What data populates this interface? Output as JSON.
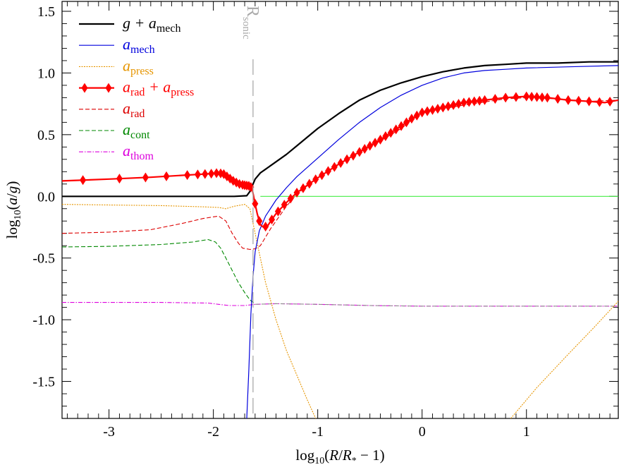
{
  "chart_data": {
    "type": "line",
    "xlabel": "log10(R/R* − 1)",
    "ylabel": "log10(a/g)",
    "xlim": [
      -3.45,
      1.88
    ],
    "ylim": [
      -1.8,
      1.58
    ],
    "x_ticks": [
      -3,
      -2,
      -1,
      0,
      1
    ],
    "x_tick_labels": [
      "-3",
      "-2",
      "-1",
      "0",
      "1"
    ],
    "y_ticks": [
      -1.5,
      -1.0,
      -0.5,
      0.0,
      0.5,
      1.0,
      1.5
    ],
    "y_tick_labels": [
      "-1.5",
      "-1.0",
      "-0.5",
      "0.0",
      "0.5",
      "1.0",
      "1.5"
    ],
    "annotation": {
      "text": "R",
      "sub": "sonic",
      "x": -1.62,
      "color": "#aaaaaa"
    },
    "series": [
      {
        "name": "g + a_mech",
        "label": "g + a",
        "sub": "mech",
        "color": "#000000",
        "style": "solid",
        "width": 2.2,
        "points": [
          [
            -3.45,
            0.0
          ],
          [
            -2.5,
            0.0
          ],
          [
            -1.8,
            0.0
          ],
          [
            -1.68,
            0.005
          ],
          [
            -1.65,
            0.04
          ],
          [
            -1.62,
            0.1
          ],
          [
            -1.6,
            0.14
          ],
          [
            -1.55,
            0.19
          ],
          [
            -1.5,
            0.22
          ],
          [
            -1.4,
            0.28
          ],
          [
            -1.3,
            0.34
          ],
          [
            -1.2,
            0.41
          ],
          [
            -1.0,
            0.55
          ],
          [
            -0.8,
            0.67
          ],
          [
            -0.6,
            0.78
          ],
          [
            -0.4,
            0.86
          ],
          [
            -0.2,
            0.92
          ],
          [
            0.0,
            0.97
          ],
          [
            0.2,
            1.01
          ],
          [
            0.4,
            1.04
          ],
          [
            0.6,
            1.06
          ],
          [
            0.8,
            1.07
          ],
          [
            1.0,
            1.08
          ],
          [
            1.3,
            1.08
          ],
          [
            1.6,
            1.09
          ],
          [
            1.88,
            1.09
          ]
        ]
      },
      {
        "name": "a_mech",
        "label": "a",
        "sub": "mech",
        "color": "#0000dd",
        "style": "solid",
        "width": 1.2,
        "points": [
          [
            -1.68,
            -1.8
          ],
          [
            -1.66,
            -1.4
          ],
          [
            -1.64,
            -0.95
          ],
          [
            -1.62,
            -0.65
          ],
          [
            -1.6,
            -0.45
          ],
          [
            -1.56,
            -0.28
          ],
          [
            -1.5,
            -0.16
          ],
          [
            -1.4,
            -0.03
          ],
          [
            -1.3,
            0.07
          ],
          [
            -1.2,
            0.16
          ],
          [
            -1.0,
            0.31
          ],
          [
            -0.8,
            0.46
          ],
          [
            -0.6,
            0.6
          ],
          [
            -0.4,
            0.72
          ],
          [
            -0.2,
            0.82
          ],
          [
            0.0,
            0.9
          ],
          [
            0.2,
            0.96
          ],
          [
            0.4,
            1.0
          ],
          [
            0.6,
            1.02
          ],
          [
            0.8,
            1.03
          ],
          [
            1.0,
            1.04
          ],
          [
            1.4,
            1.05
          ],
          [
            1.88,
            1.06
          ]
        ]
      },
      {
        "name": "a_press",
        "label": "a",
        "sub": "press",
        "color": "#e69500",
        "style": "dotted",
        "width": 1.1,
        "points": [
          [
            -3.45,
            -0.065
          ],
          [
            -3.0,
            -0.07
          ],
          [
            -2.5,
            -0.075
          ],
          [
            -2.1,
            -0.085
          ],
          [
            -1.95,
            -0.09
          ],
          [
            -1.88,
            -0.1
          ],
          [
            -1.84,
            -0.09
          ],
          [
            -1.8,
            -0.08
          ],
          [
            -1.7,
            -0.065
          ],
          [
            -1.65,
            -0.1
          ],
          [
            -1.6,
            -0.3
          ],
          [
            -1.55,
            -0.5
          ],
          [
            -1.5,
            -0.7
          ],
          [
            -1.4,
            -1.0
          ],
          [
            -1.3,
            -1.25
          ],
          [
            -1.2,
            -1.45
          ],
          [
            -1.1,
            -1.65
          ],
          [
            -1.02,
            -1.8
          ]
        ]
      },
      {
        "name": "a_press_outer",
        "label": "",
        "sub": "",
        "color": "#e69500",
        "style": "dotted",
        "width": 1.1,
        "legend": false,
        "points": [
          [
            0.85,
            -1.8
          ],
          [
            1.1,
            -1.55
          ],
          [
            1.4,
            -1.28
          ],
          [
            1.65,
            -1.06
          ],
          [
            1.88,
            -0.85
          ]
        ]
      },
      {
        "name": "a_thom",
        "label": "a",
        "sub": "thom",
        "color": "#dd00dd",
        "style": "dashdot",
        "width": 1.1,
        "points": [
          [
            -3.45,
            -0.86
          ],
          [
            -2.5,
            -0.86
          ],
          [
            -2.05,
            -0.865
          ],
          [
            -1.95,
            -0.875
          ],
          [
            -1.85,
            -0.885
          ],
          [
            -1.7,
            -0.885
          ],
          [
            -1.6,
            -0.875
          ],
          [
            -1.4,
            -0.87
          ],
          [
            -1.0,
            -0.875
          ],
          [
            -0.5,
            -0.885
          ],
          [
            0.0,
            -0.89
          ],
          [
            0.5,
            -0.89
          ],
          [
            1.0,
            -0.89
          ],
          [
            1.88,
            -0.89
          ]
        ]
      },
      {
        "name": "a_thom_overlay",
        "label": "",
        "sub": "",
        "color": "#888888",
        "style": "dashed",
        "width": 1.0,
        "legend": false,
        "points": [
          [
            -1.6,
            -0.875
          ],
          [
            -1.4,
            -0.87
          ],
          [
            -1.0,
            -0.875
          ],
          [
            -0.5,
            -0.885
          ],
          [
            0.0,
            -0.89
          ],
          [
            0.5,
            -0.89
          ],
          [
            1.0,
            -0.89
          ],
          [
            1.88,
            -0.89
          ]
        ]
      },
      {
        "name": "a_cont",
        "label": "a",
        "sub": "cont",
        "color": "#008800",
        "style": "dashed",
        "width": 1.1,
        "points": [
          [
            -3.45,
            -0.41
          ],
          [
            -3.0,
            -0.405
          ],
          [
            -2.5,
            -0.39
          ],
          [
            -2.2,
            -0.37
          ],
          [
            -2.05,
            -0.35
          ],
          [
            -1.98,
            -0.37
          ],
          [
            -1.93,
            -0.42
          ],
          [
            -1.88,
            -0.5
          ],
          [
            -1.82,
            -0.6
          ],
          [
            -1.76,
            -0.7
          ],
          [
            -1.7,
            -0.78
          ],
          [
            -1.65,
            -0.84
          ],
          [
            -1.6,
            -0.87
          ]
        ]
      },
      {
        "name": "a_rad",
        "label": "a",
        "sub": "rad",
        "color": "#dd0000",
        "style": "dashed",
        "width": 1.1,
        "points": [
          [
            -3.45,
            -0.3
          ],
          [
            -3.0,
            -0.29
          ],
          [
            -2.6,
            -0.27
          ],
          [
            -2.3,
            -0.22
          ],
          [
            -2.1,
            -0.18
          ],
          [
            -1.95,
            -0.16
          ],
          [
            -1.88,
            -0.2
          ],
          [
            -1.82,
            -0.3
          ],
          [
            -1.76,
            -0.38
          ],
          [
            -1.72,
            -0.42
          ],
          [
            -1.65,
            -0.43
          ],
          [
            -1.6,
            -0.425
          ],
          [
            -1.55,
            -0.4
          ],
          [
            -1.5,
            -0.33
          ],
          [
            -1.45,
            -0.26
          ],
          [
            -1.4,
            -0.2
          ],
          [
            -1.3,
            -0.08
          ],
          [
            -1.2,
            0.02
          ],
          [
            -1.0,
            0.15
          ],
          [
            -0.8,
            0.26
          ],
          [
            -0.6,
            0.36
          ],
          [
            -0.4,
            0.45
          ],
          [
            -0.2,
            0.55
          ],
          [
            -0.1,
            0.62
          ],
          [
            0.0,
            0.68
          ],
          [
            0.4,
            0.74
          ],
          [
            0.8,
            0.79
          ],
          [
            1.0,
            0.8
          ],
          [
            1.3,
            0.79
          ],
          [
            1.6,
            0.77
          ],
          [
            1.88,
            0.78
          ]
        ]
      },
      {
        "name": "a_rad + a_press",
        "label": "a",
        "sub": "rad",
        "label2": " + a",
        "sub2": "press",
        "color": "#ff0000",
        "style": "solid",
        "width": 2.2,
        "markers": true,
        "points": [
          [
            -3.45,
            0.125
          ],
          [
            -3.0,
            0.14
          ],
          [
            -2.6,
            0.155
          ],
          [
            -2.3,
            0.17
          ],
          [
            -2.1,
            0.18
          ],
          [
            -2.0,
            0.185
          ],
          [
            -1.95,
            0.19
          ],
          [
            -1.9,
            0.18
          ],
          [
            -1.85,
            0.15
          ],
          [
            -1.8,
            0.12
          ],
          [
            -1.75,
            0.1
          ],
          [
            -1.7,
            0.09
          ],
          [
            -1.66,
            0.085
          ],
          [
            -1.63,
            0.07
          ],
          [
            -1.61,
            -0.02
          ],
          [
            -1.58,
            -0.14
          ],
          [
            -1.55,
            -0.23
          ],
          [
            -1.52,
            -0.25
          ],
          [
            -1.48,
            -0.24
          ],
          [
            -1.45,
            -0.2
          ],
          [
            -1.4,
            -0.14
          ],
          [
            -1.3,
            -0.05
          ],
          [
            -1.2,
            0.03
          ],
          [
            -1.0,
            0.15
          ],
          [
            -0.8,
            0.26
          ],
          [
            -0.6,
            0.36
          ],
          [
            -0.4,
            0.46
          ],
          [
            -0.2,
            0.57
          ],
          [
            -0.1,
            0.63
          ],
          [
            0.0,
            0.68
          ],
          [
            0.2,
            0.72
          ],
          [
            0.4,
            0.76
          ],
          [
            0.6,
            0.78
          ],
          [
            0.8,
            0.8
          ],
          [
            1.0,
            0.81
          ],
          [
            1.2,
            0.8
          ],
          [
            1.4,
            0.78
          ],
          [
            1.6,
            0.77
          ],
          [
            1.75,
            0.76
          ],
          [
            1.88,
            0.78
          ]
        ],
        "marker_x": [
          -3.25,
          -2.9,
          -2.65,
          -2.45,
          -2.25,
          -2.15,
          -2.08,
          -2.02,
          -1.97,
          -1.93,
          -1.9,
          -1.87,
          -1.84,
          -1.81,
          -1.78,
          -1.75,
          -1.72,
          -1.7,
          -1.68,
          -1.66,
          -1.64,
          -1.6,
          -1.56,
          -1.5,
          -1.44,
          -1.38,
          -1.32,
          -1.26,
          -1.2,
          -1.14,
          -1.08,
          -1.02,
          -0.96,
          -0.9,
          -0.84,
          -0.78,
          -0.72,
          -0.66,
          -0.6,
          -0.55,
          -0.5,
          -0.45,
          -0.4,
          -0.35,
          -0.3,
          -0.25,
          -0.2,
          -0.15,
          -0.1,
          -0.05,
          0.0,
          0.05,
          0.1,
          0.15,
          0.2,
          0.25,
          0.3,
          0.35,
          0.4,
          0.45,
          0.5,
          0.55,
          0.6,
          0.7,
          0.8,
          0.9,
          1.0,
          1.05,
          1.1,
          1.15,
          1.2,
          1.3,
          1.4,
          1.5,
          1.6,
          1.7,
          1.8
        ]
      },
      {
        "name": "unity",
        "label": "",
        "sub": "",
        "color": "#44ee44",
        "style": "solid",
        "width": 1.2,
        "legend": false,
        "points": [
          [
            -1.55,
            0.0
          ],
          [
            1.88,
            0.0
          ]
        ]
      }
    ],
    "legend_order": [
      "g + a_mech",
      "a_mech",
      "a_press",
      "a_rad + a_press",
      "a_rad",
      "a_cont",
      "a_thom"
    ]
  }
}
